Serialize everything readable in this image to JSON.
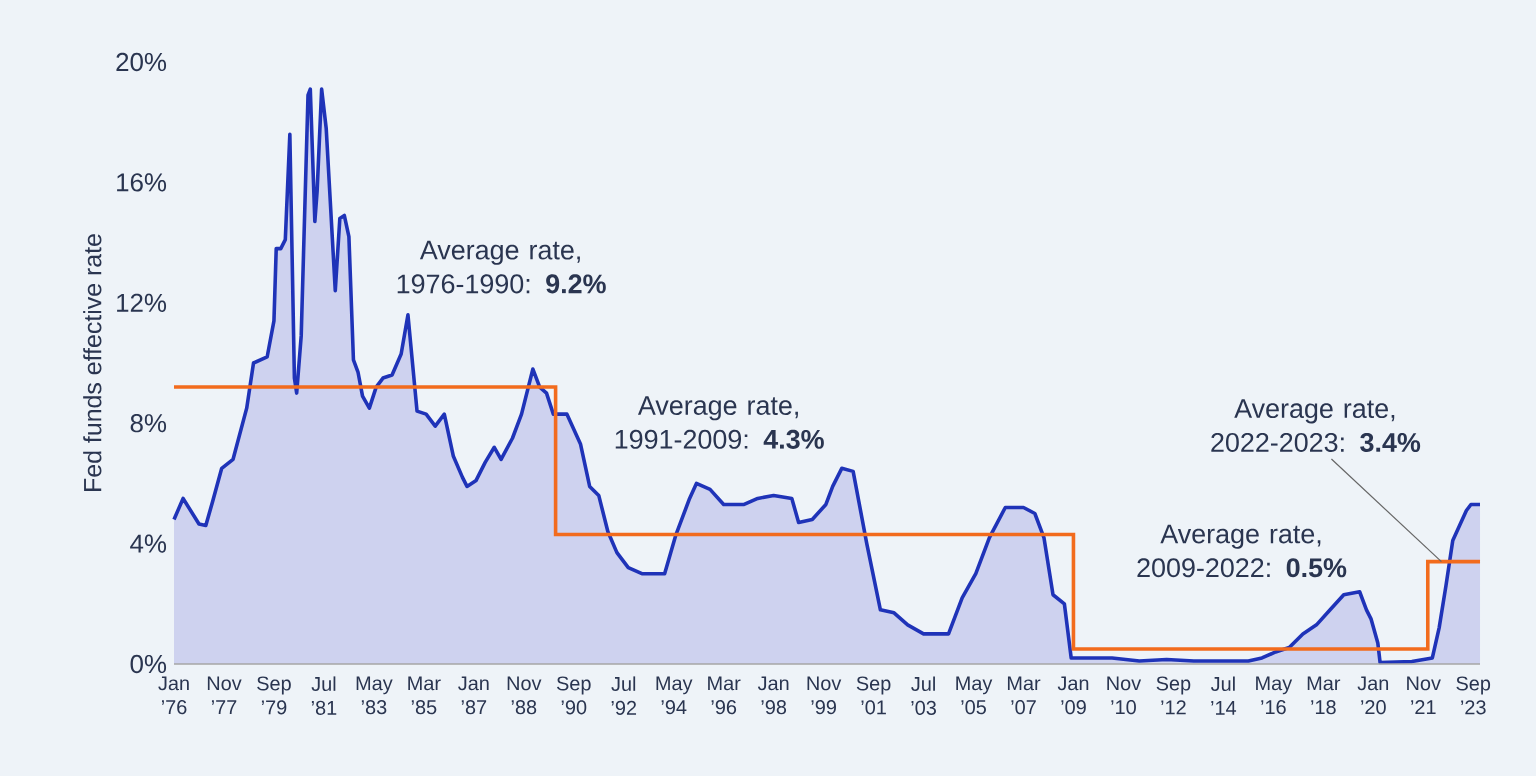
{
  "chart_data": {
    "type": "area",
    "ylabel": "Fed funds effective rate",
    "xlim": [
      "1976-01",
      "2023-12"
    ],
    "ylim": [
      0,
      20
    ],
    "yticks": [
      {
        "value": 0,
        "label": "0%"
      },
      {
        "value": 4,
        "label": "4%"
      },
      {
        "value": 8,
        "label": "8%"
      },
      {
        "value": 12,
        "label": "12%"
      },
      {
        "value": 16,
        "label": "16%"
      },
      {
        "value": 20,
        "label": "20%"
      }
    ],
    "xticks": [
      {
        "value": "1976-01",
        "label": "Jan ’76"
      },
      {
        "value": "1977-11",
        "label": "Nov ’77"
      },
      {
        "value": "1979-09",
        "label": "Sep ’79"
      },
      {
        "value": "1981-07",
        "label": "Jul ’81"
      },
      {
        "value": "1983-05",
        "label": "May ’83"
      },
      {
        "value": "1985-03",
        "label": "Mar ’85"
      },
      {
        "value": "1987-01",
        "label": "Jan ’87"
      },
      {
        "value": "1988-11",
        "label": "Nov ’88"
      },
      {
        "value": "1990-09",
        "label": "Sep ’90"
      },
      {
        "value": "1992-07",
        "label": "Jul ’92"
      },
      {
        "value": "1994-05",
        "label": "May ’94"
      },
      {
        "value": "1996-03",
        "label": "Mar ’96"
      },
      {
        "value": "1998-01",
        "label": "Jan ’98"
      },
      {
        "value": "1999-11",
        "label": "Nov ’99"
      },
      {
        "value": "2001-09",
        "label": "Sep ’01"
      },
      {
        "value": "2003-07",
        "label": "Jul ’03"
      },
      {
        "value": "2005-05",
        "label": "May ’05"
      },
      {
        "value": "2007-03",
        "label": "Mar ’07"
      },
      {
        "value": "2009-01",
        "label": "Jan ’09"
      },
      {
        "value": "2010-11",
        "label": "Nov ’10"
      },
      {
        "value": "2012-09",
        "label": "Sep ’12"
      },
      {
        "value": "2014-07",
        "label": "Jul ’14"
      },
      {
        "value": "2016-05",
        "label": "May ’16"
      },
      {
        "value": "2018-03",
        "label": "Mar ’18"
      },
      {
        "value": "2020-01",
        "label": "Jan ’20"
      },
      {
        "value": "2021-11",
        "label": "Nov ’21"
      },
      {
        "value": "2023-09",
        "label": "Sep ’23"
      }
    ],
    "grid": false,
    "series": [
      {
        "color": "#1f33b8",
        "x": [
          "1976-01",
          "1976-05",
          "1976-12",
          "1977-03",
          "1977-06",
          "1977-10",
          "1978-03",
          "1978-09",
          "1978-12",
          "1979-06",
          "1979-09",
          "1979-10",
          "1979-12",
          "1980-02",
          "1980-04",
          "1980-06",
          "1980-07",
          "1980-09",
          "1980-12",
          "1981-01",
          "1981-03",
          "1981-04",
          "1981-06",
          "1981-08",
          "1981-10",
          "1981-12",
          "1982-02",
          "1982-04",
          "1982-06",
          "1982-08",
          "1982-10",
          "1982-12",
          "1983-03",
          "1983-06",
          "1983-09",
          "1984-01",
          "1984-05",
          "1984-08",
          "1984-12",
          "1985-04",
          "1985-08",
          "1985-12",
          "1986-04",
          "1986-08",
          "1986-10",
          "1987-02",
          "1987-06",
          "1987-10",
          "1988-01",
          "1988-06",
          "1988-10",
          "1989-03",
          "1989-06",
          "1989-09",
          "1989-12",
          "1990-06",
          "1990-12",
          "1991-04",
          "1991-08",
          "1991-12",
          "1992-04",
          "1992-09",
          "1993-03",
          "1993-09",
          "1994-01",
          "1994-06",
          "1994-12",
          "1995-03",
          "1995-09",
          "1996-03",
          "1996-12",
          "1997-06",
          "1998-01",
          "1998-09",
          "1998-12",
          "1999-06",
          "1999-12",
          "2000-03",
          "2000-07",
          "2000-12",
          "2001-01",
          "2001-06",
          "2001-12",
          "2002-06",
          "2002-12",
          "2003-07",
          "2004-06",
          "2004-12",
          "2005-06",
          "2005-12",
          "2006-07",
          "2007-03",
          "2007-08",
          "2007-12",
          "2008-04",
          "2008-09",
          "2008-12",
          "2009-06",
          "2010-06",
          "2011-06",
          "2012-06",
          "2013-06",
          "2014-06",
          "2015-06",
          "2015-12",
          "2016-06",
          "2016-12",
          "2017-06",
          "2017-12",
          "2018-06",
          "2018-12",
          "2019-07",
          "2019-10",
          "2019-12",
          "2020-03",
          "2020-04",
          "2021-06",
          "2022-03",
          "2022-06",
          "2022-09",
          "2022-12",
          "2023-03",
          "2023-06",
          "2023-08",
          "2023-12"
        ],
        "values": [
          4.8,
          5.5,
          4.65,
          4.6,
          5.4,
          6.5,
          6.8,
          8.5,
          10.0,
          10.2,
          11.4,
          13.8,
          13.8,
          14.1,
          17.6,
          9.5,
          9.0,
          10.9,
          18.9,
          19.1,
          14.7,
          15.7,
          19.1,
          17.8,
          15.1,
          12.4,
          14.8,
          14.9,
          14.2,
          10.1,
          9.7,
          8.9,
          8.5,
          9.2,
          9.5,
          9.6,
          10.3,
          11.6,
          8.4,
          8.3,
          7.9,
          8.3,
          6.9,
          6.2,
          5.9,
          6.1,
          6.7,
          7.2,
          6.8,
          7.5,
          8.3,
          9.8,
          9.2,
          9.0,
          8.3,
          8.3,
          7.3,
          5.9,
          5.6,
          4.4,
          3.7,
          3.2,
          3.0,
          3.0,
          3.0,
          4.3,
          5.5,
          6.0,
          5.8,
          5.3,
          5.3,
          5.5,
          5.6,
          5.5,
          4.7,
          4.8,
          5.3,
          5.9,
          6.5,
          6.4,
          6.0,
          4.0,
          1.8,
          1.7,
          1.3,
          1.0,
          1.0,
          2.2,
          3.0,
          4.2,
          5.2,
          5.2,
          5.0,
          4.2,
          2.3,
          2.0,
          0.2,
          0.2,
          0.2,
          0.1,
          0.15,
          0.1,
          0.1,
          0.1,
          0.2,
          0.4,
          0.55,
          1.0,
          1.3,
          1.8,
          2.3,
          2.4,
          1.8,
          1.5,
          0.7,
          0.05,
          0.08,
          0.2,
          1.2,
          2.6,
          4.1,
          4.6,
          5.1,
          5.3,
          5.3
        ]
      },
      {
        "type": "step",
        "color": "#f26b1d",
        "x": [
          "1976-01",
          "1990-01",
          "2009-01",
          "2022-01",
          "2023-12"
        ],
        "values": [
          9.2,
          4.3,
          0.5,
          3.4,
          3.4
        ]
      }
    ],
    "annotations": [
      "Average rate, 1976-1990: **9.2%**",
      "Average rate, 1991-2009: **4.3%**",
      {
        "text": "Average rate, 2009-2022: **0.5%**",
        "x": "2015-03",
        "y": 0.5
      },
      {
        "text": "Average rate, 2022-2023: **3.4%**",
        "x": "2022-07",
        "y": 3.4
      }
    ]
  }
}
